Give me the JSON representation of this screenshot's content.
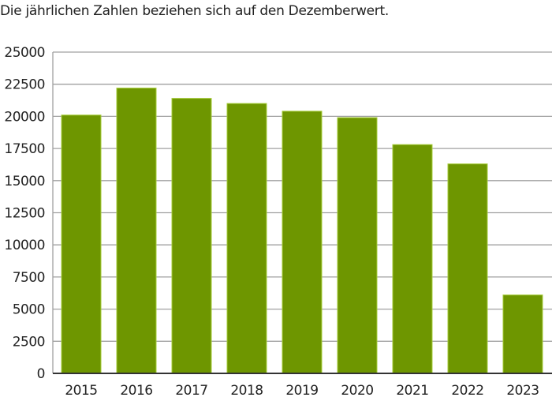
{
  "chart_data": {
    "type": "bar",
    "title": "Die jährlichen Zahlen beziehen sich auf den Dezemberwert.",
    "xlabel": "",
    "ylabel": "",
    "categories": [
      "2015",
      "2016",
      "2017",
      "2018",
      "2019",
      "2020",
      "2021",
      "2022",
      "2023"
    ],
    "values": [
      20100,
      22200,
      21400,
      21000,
      20400,
      19900,
      17800,
      16300,
      6100
    ],
    "ylim": [
      0,
      25000
    ],
    "yticks": [
      0,
      2500,
      5000,
      7500,
      10000,
      12500,
      15000,
      17500,
      20000,
      22500,
      25000
    ],
    "grid": true,
    "legend": "none",
    "colors": {
      "bar": "#6e9600",
      "bar_edge": "#a6cc3a",
      "grid": "#a0a0a0",
      "axis": "#333333"
    }
  }
}
